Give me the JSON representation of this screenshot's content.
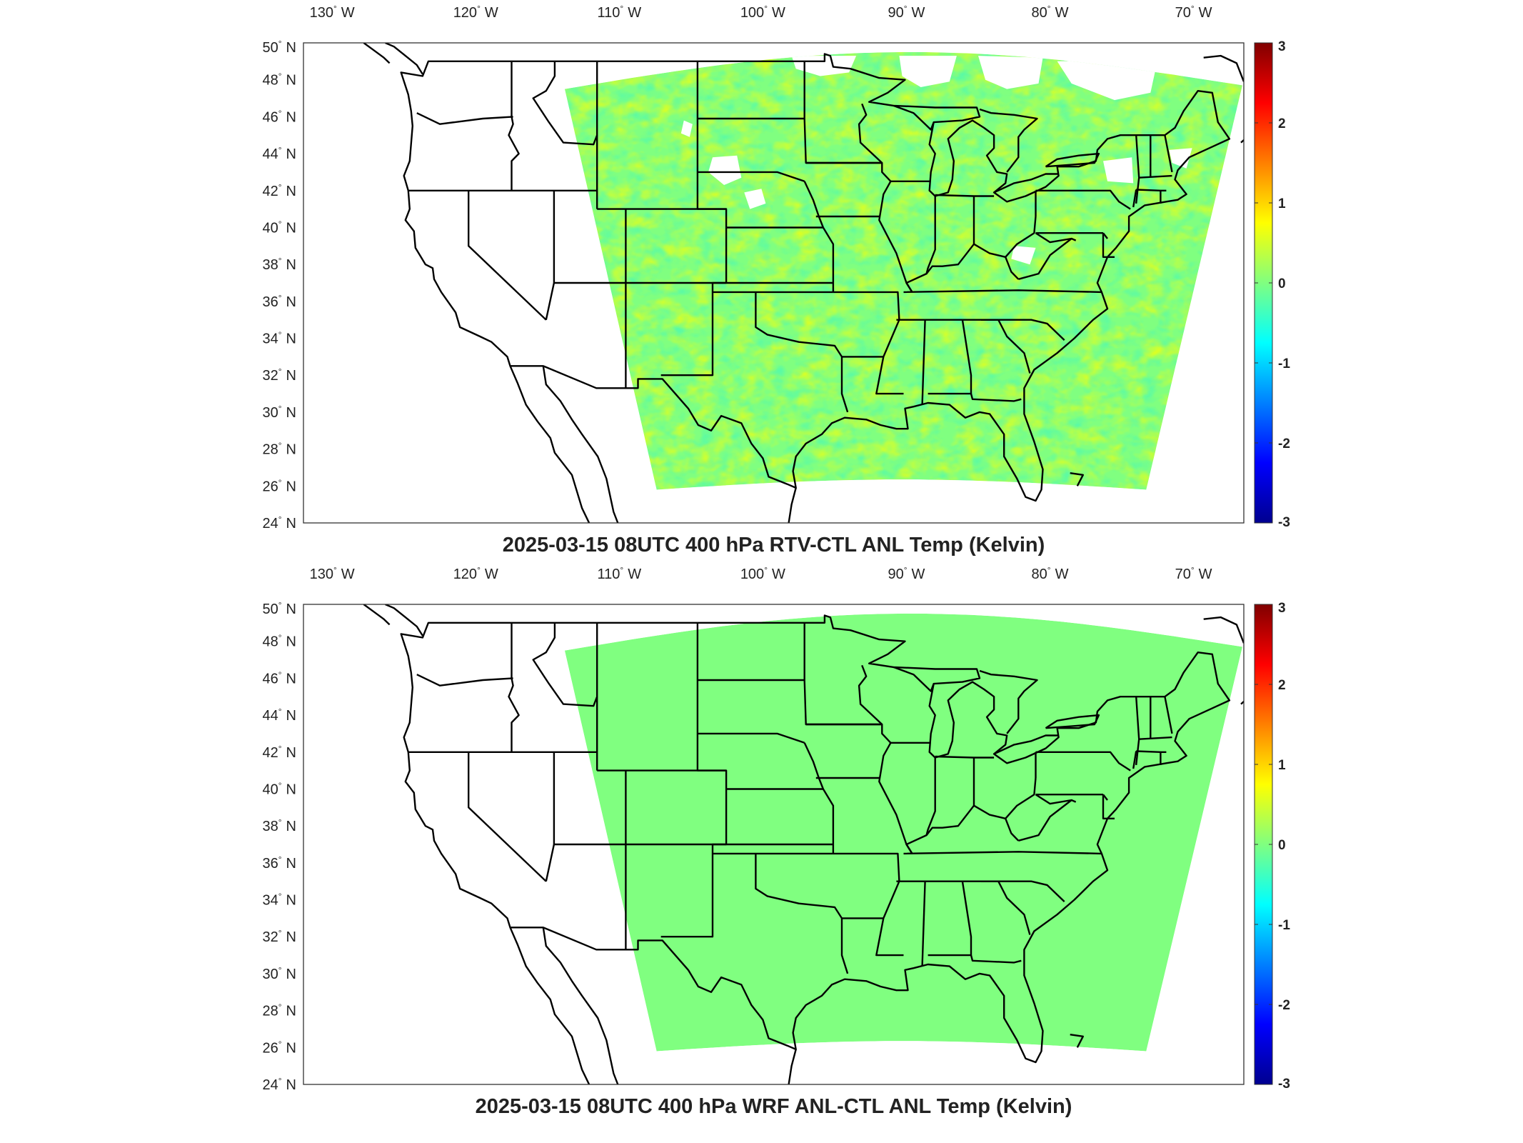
{
  "panels": [
    {
      "id": "rtv",
      "title": "2025-03-15 08UTC 400 hPa RTV-CTL ANL Temp (Kelvin)",
      "field": "noisy",
      "base_value": 0.15
    },
    {
      "id": "wrf",
      "title": "2025-03-15 08UTC 400 hPa WRF ANL-CTL ANL Temp (Kelvin)",
      "field": "uniform",
      "base_value": 0.0
    }
  ],
  "lon_ticks": [
    {
      "value": -130,
      "label": "130",
      "hemi": "W"
    },
    {
      "value": -120,
      "label": "120",
      "hemi": "W"
    },
    {
      "value": -110,
      "label": "110",
      "hemi": "W"
    },
    {
      "value": -100,
      "label": "100",
      "hemi": "W"
    },
    {
      "value": -90,
      "label": "90",
      "hemi": "W"
    },
    {
      "value": -80,
      "label": "80",
      "hemi": "W"
    },
    {
      "value": -70,
      "label": "70",
      "hemi": "W"
    }
  ],
  "lat_ticks": [
    {
      "value": 50,
      "label": "50",
      "hemi": "N"
    },
    {
      "value": 48,
      "label": "48",
      "hemi": "N"
    },
    {
      "value": 46,
      "label": "46",
      "hemi": "N"
    },
    {
      "value": 44,
      "label": "44",
      "hemi": "N"
    },
    {
      "value": 42,
      "label": "42",
      "hemi": "N"
    },
    {
      "value": 40,
      "label": "40",
      "hemi": "N"
    },
    {
      "value": 38,
      "label": "38",
      "hemi": "N"
    },
    {
      "value": 36,
      "label": "36",
      "hemi": "N"
    },
    {
      "value": 34,
      "label": "34",
      "hemi": "N"
    },
    {
      "value": 32,
      "label": "32",
      "hemi": "N"
    },
    {
      "value": 30,
      "label": "30",
      "hemi": "N"
    },
    {
      "value": 28,
      "label": "28",
      "hemi": "N"
    },
    {
      "value": 26,
      "label": "26",
      "hemi": "N"
    },
    {
      "value": 24,
      "label": "24",
      "hemi": "N"
    }
  ],
  "colorbar": {
    "min": -3,
    "max": 3,
    "ticks": [
      "3",
      "2",
      "1",
      "0",
      "-1",
      "-2",
      "-3"
    ],
    "colormap": "jet"
  },
  "colors": {
    "zero_color": "#80ff80",
    "border": "#000000"
  }
}
